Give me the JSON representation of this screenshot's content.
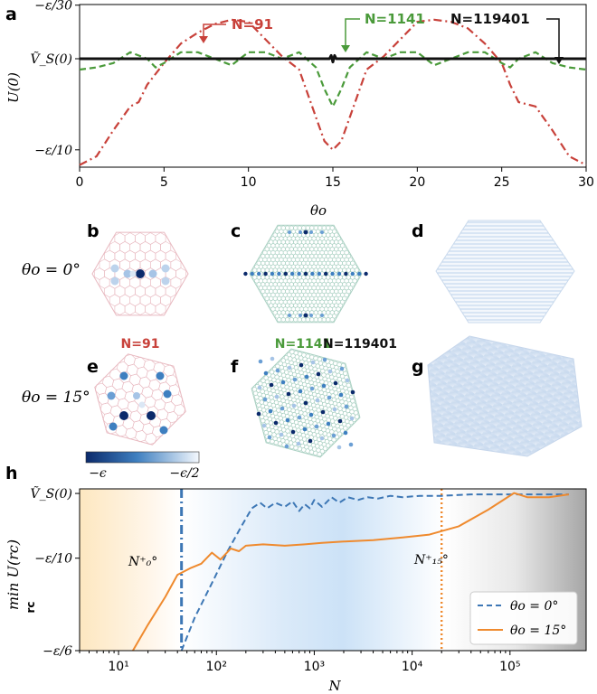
{
  "panel_labels": {
    "a": "a",
    "b": "b",
    "c": "c",
    "d": "d",
    "e": "e",
    "f": "f",
    "g": "g",
    "h": "h"
  },
  "row_labels": {
    "theta0": "θo = 0°",
    "theta15": "θo = 15°"
  },
  "n_labels": {
    "n91": "N=91",
    "n1141": "N=1141",
    "n119401": "N=119401"
  },
  "colors": {
    "red": "#c8413a",
    "green": "#4a9a3a",
    "black": "#111111",
    "blue": "#3d77b5",
    "orange": "#ef8a2e",
    "hexpink": "#e8b9c0",
    "hexgreen": "#a9d0c2",
    "dark": "#0b2a6b"
  },
  "colorbar": {
    "left_label": "−ϵ",
    "right_label": "−ϵ/2"
  },
  "chart_data": [
    {
      "id": "panel-a",
      "type": "line",
      "title": "",
      "xlabel": "θo",
      "ylabel": "U(0)",
      "xlim": [
        0,
        30
      ],
      "ylim": [
        -0.108,
        -0.033
      ],
      "xticks": [
        0,
        5,
        10,
        15,
        20,
        25,
        30
      ],
      "xtick_labels": [
        "0",
        "5",
        "10",
        "15",
        "20",
        "25",
        "30"
      ],
      "yticks": [
        -0.0333,
        -0.058,
        -0.1
      ],
      "ytick_labels": [
        "−ε/30",
        "Ṽ_S(0)",
        "−ε/10"
      ],
      "series": [
        {
          "name": "N=91",
          "style": "dashdot",
          "color": "#c8413a",
          "x": [
            0,
            1,
            2,
            3,
            3.5,
            4,
            5,
            6,
            7,
            8,
            9,
            10,
            11,
            12,
            13,
            14,
            14.5,
            15,
            15.5,
            16,
            17,
            18,
            19,
            20,
            21,
            22,
            23,
            24,
            25,
            25.5,
            26,
            27,
            28,
            29,
            30
          ],
          "y": [
            -0.107,
            -0.103,
            -0.091,
            -0.08,
            -0.078,
            -0.07,
            -0.06,
            -0.051,
            -0.046,
            -0.042,
            -0.04,
            -0.041,
            -0.049,
            -0.057,
            -0.063,
            -0.085,
            -0.096,
            -0.1,
            -0.096,
            -0.085,
            -0.063,
            -0.057,
            -0.049,
            -0.041,
            -0.04,
            -0.041,
            -0.044,
            -0.051,
            -0.06,
            -0.07,
            -0.078,
            -0.08,
            -0.091,
            -0.103,
            -0.107
          ]
        },
        {
          "name": "N=1141",
          "style": "dashed",
          "color": "#4a9a3a",
          "x": [
            0,
            1,
            2,
            3,
            4,
            4.5,
            5,
            6,
            7,
            8,
            9,
            10,
            11,
            12,
            13,
            14,
            14.5,
            15,
            15.5,
            16,
            17,
            18,
            19,
            20,
            21,
            22,
            23,
            24,
            25,
            25.5,
            26,
            27,
            28,
            29,
            30
          ],
          "y": [
            -0.063,
            -0.062,
            -0.06,
            -0.055,
            -0.058,
            -0.062,
            -0.06,
            -0.055,
            -0.055,
            -0.058,
            -0.061,
            -0.055,
            -0.055,
            -0.058,
            -0.055,
            -0.062,
            -0.072,
            -0.08,
            -0.072,
            -0.062,
            -0.055,
            -0.058,
            -0.055,
            -0.055,
            -0.061,
            -0.058,
            -0.055,
            -0.055,
            -0.06,
            -0.062,
            -0.058,
            -0.055,
            -0.06,
            -0.062,
            -0.063
          ]
        },
        {
          "name": "N=119401",
          "style": "solid",
          "color": "#111111",
          "x": [
            0,
            14.8,
            14.9,
            15.0,
            15.1,
            15.2,
            30
          ],
          "y": [
            -0.058,
            -0.058,
            -0.0565,
            -0.0595,
            -0.0565,
            -0.058,
            -0.058
          ]
        }
      ],
      "annotations": [
        "N=91",
        "N=1141",
        "N=119401"
      ]
    },
    {
      "id": "panel-h",
      "type": "line",
      "xlabel": "N",
      "ylabel": "min U(rc)",
      "ylabel_sub": "rc",
      "xscale": "log",
      "xlim": [
        4,
        600000
      ],
      "ylim": [
        -0.1667,
        -0.05
      ],
      "xticks": [
        10,
        100,
        1000,
        10000,
        100000
      ],
      "xtick_labels": [
        "10¹",
        "10²",
        "10³",
        "10⁴",
        "10⁵"
      ],
      "yticks": [
        -0.0533,
        -0.1,
        -0.1667
      ],
      "ytick_labels": [
        "Ṽ_S(0)",
        "−ε/10",
        "−ε/6"
      ],
      "legend_position": "lower-right",
      "series": [
        {
          "name": "θo = 0°",
          "style": "dashed",
          "color": "#3d77b5",
          "x": [
            44,
            60,
            90,
            130,
            180,
            230,
            280,
            330,
            400,
            500,
            600,
            700,
            800,
            900,
            1000,
            1200,
            1500,
            1800,
            2200,
            2800,
            3500,
            4500,
            6000,
            8000,
            12000,
            20000,
            40000,
            80000,
            150000,
            300000,
            400000
          ],
          "y": [
            -0.167,
            -0.143,
            -0.118,
            -0.095,
            -0.077,
            -0.064,
            -0.06,
            -0.064,
            -0.06,
            -0.063,
            -0.059,
            -0.066,
            -0.061,
            -0.064,
            -0.058,
            -0.063,
            -0.056,
            -0.06,
            -0.056,
            -0.058,
            -0.056,
            -0.057,
            -0.055,
            -0.056,
            -0.055,
            -0.055,
            -0.054,
            -0.054,
            -0.054,
            -0.054,
            -0.054
          ]
        },
        {
          "name": "θo = 15°",
          "style": "solid",
          "color": "#ef8a2e",
          "x": [
            14,
            20,
            30,
            40,
            55,
            70,
            90,
            110,
            140,
            170,
            200,
            300,
            500,
            800,
            1200,
            2000,
            4000,
            8000,
            15000,
            30000,
            60000,
            110000,
            150000,
            250000,
            400000
          ],
          "y": [
            -0.167,
            -0.148,
            -0.128,
            -0.112,
            -0.107,
            -0.104,
            -0.096,
            -0.101,
            -0.093,
            -0.095,
            -0.091,
            -0.09,
            -0.091,
            -0.09,
            -0.089,
            -0.088,
            -0.087,
            -0.085,
            -0.083,
            -0.077,
            -0.065,
            -0.053,
            -0.056,
            -0.056,
            -0.054
          ]
        }
      ],
      "vlines": [
        {
          "x": 44,
          "label": "N⁺₀°",
          "color": "#3d77b5"
        },
        {
          "x": 20000,
          "label": "N⁺₁₅°",
          "color": "#ef8a2e"
        }
      ]
    }
  ]
}
